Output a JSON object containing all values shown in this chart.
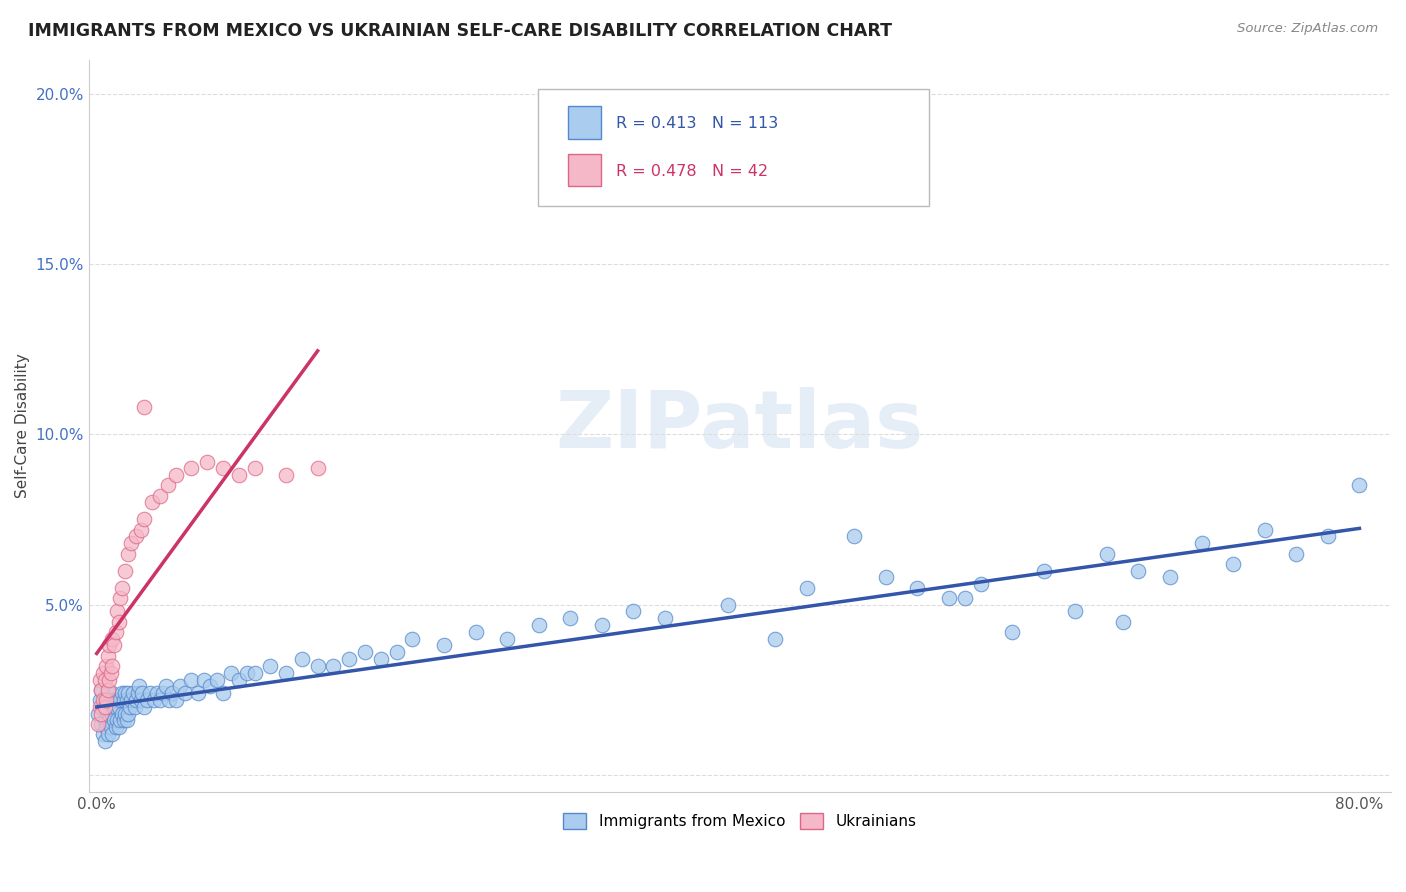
{
  "title": "IMMIGRANTS FROM MEXICO VS UKRAINIAN SELF-CARE DISABILITY CORRELATION CHART",
  "source": "Source: ZipAtlas.com",
  "ylabel": "Self-Care Disability",
  "xlim": [
    -0.005,
    0.82
  ],
  "ylim": [
    -0.005,
    0.21
  ],
  "xticks": [
    0.0,
    0.1,
    0.2,
    0.3,
    0.4,
    0.5,
    0.6,
    0.7,
    0.8
  ],
  "xticklabels": [
    "0.0%",
    "",
    "",
    "",
    "",
    "",
    "",
    "",
    "80.0%"
  ],
  "yticks": [
    0.0,
    0.05,
    0.1,
    0.15,
    0.2
  ],
  "yticklabels": [
    "",
    "5.0%",
    "10.0%",
    "15.0%",
    "20.0%"
  ],
  "legend1_label": "Immigrants from Mexico",
  "legend2_label": "Ukrainians",
  "r_mexico": 0.413,
  "n_mexico": 113,
  "r_ukraine": 0.478,
  "n_ukraine": 42,
  "color_mexico_fill": "#aaccee",
  "color_ukraine_fill": "#f5b8c8",
  "color_mexico_edge": "#5588cc",
  "color_ukraine_edge": "#dd6688",
  "color_mexico_line": "#3355aa",
  "color_ukraine_line": "#cc3366",
  "color_dash": "#ddaaaa",
  "watermark_color": "#ccddf0",
  "background_color": "#ffffff",
  "grid_color": "#dddddd",
  "mexico_x": [
    0.001,
    0.002,
    0.003,
    0.003,
    0.004,
    0.004,
    0.005,
    0.005,
    0.005,
    0.006,
    0.006,
    0.007,
    0.007,
    0.007,
    0.008,
    0.008,
    0.009,
    0.009,
    0.01,
    0.01,
    0.01,
    0.011,
    0.011,
    0.012,
    0.012,
    0.013,
    0.013,
    0.014,
    0.014,
    0.015,
    0.015,
    0.016,
    0.016,
    0.017,
    0.017,
    0.018,
    0.018,
    0.019,
    0.019,
    0.02,
    0.02,
    0.021,
    0.022,
    0.023,
    0.024,
    0.025,
    0.026,
    0.027,
    0.028,
    0.029,
    0.03,
    0.032,
    0.034,
    0.036,
    0.038,
    0.04,
    0.042,
    0.044,
    0.046,
    0.048,
    0.05,
    0.053,
    0.056,
    0.06,
    0.064,
    0.068,
    0.072,
    0.076,
    0.08,
    0.085,
    0.09,
    0.095,
    0.1,
    0.11,
    0.12,
    0.13,
    0.14,
    0.15,
    0.16,
    0.17,
    0.18,
    0.19,
    0.2,
    0.22,
    0.24,
    0.26,
    0.28,
    0.3,
    0.32,
    0.34,
    0.36,
    0.4,
    0.45,
    0.5,
    0.52,
    0.54,
    0.56,
    0.6,
    0.64,
    0.66,
    0.68,
    0.7,
    0.72,
    0.74,
    0.76,
    0.78,
    0.8,
    0.62,
    0.65,
    0.55,
    0.58,
    0.48,
    0.43
  ],
  "mexico_y": [
    0.018,
    0.022,
    0.015,
    0.025,
    0.012,
    0.02,
    0.01,
    0.016,
    0.022,
    0.014,
    0.02,
    0.012,
    0.018,
    0.024,
    0.016,
    0.022,
    0.014,
    0.02,
    0.012,
    0.018,
    0.024,
    0.016,
    0.022,
    0.014,
    0.02,
    0.016,
    0.022,
    0.014,
    0.02,
    0.016,
    0.022,
    0.018,
    0.024,
    0.016,
    0.022,
    0.018,
    0.024,
    0.016,
    0.022,
    0.018,
    0.024,
    0.02,
    0.022,
    0.024,
    0.02,
    0.022,
    0.024,
    0.026,
    0.022,
    0.024,
    0.02,
    0.022,
    0.024,
    0.022,
    0.024,
    0.022,
    0.024,
    0.026,
    0.022,
    0.024,
    0.022,
    0.026,
    0.024,
    0.028,
    0.024,
    0.028,
    0.026,
    0.028,
    0.024,
    0.03,
    0.028,
    0.03,
    0.03,
    0.032,
    0.03,
    0.034,
    0.032,
    0.032,
    0.034,
    0.036,
    0.034,
    0.036,
    0.04,
    0.038,
    0.042,
    0.04,
    0.044,
    0.046,
    0.044,
    0.048,
    0.046,
    0.05,
    0.055,
    0.058,
    0.055,
    0.052,
    0.056,
    0.06,
    0.065,
    0.06,
    0.058,
    0.068,
    0.062,
    0.072,
    0.065,
    0.07,
    0.085,
    0.048,
    0.045,
    0.052,
    0.042,
    0.07,
    0.04
  ],
  "ukraine_x": [
    0.001,
    0.002,
    0.002,
    0.003,
    0.003,
    0.004,
    0.004,
    0.005,
    0.005,
    0.006,
    0.006,
    0.007,
    0.007,
    0.008,
    0.008,
    0.009,
    0.01,
    0.01,
    0.011,
    0.012,
    0.013,
    0.014,
    0.015,
    0.016,
    0.018,
    0.02,
    0.022,
    0.025,
    0.028,
    0.03,
    0.035,
    0.04,
    0.045,
    0.05,
    0.06,
    0.07,
    0.08,
    0.09,
    0.1,
    0.12,
    0.14,
    0.03
  ],
  "ukraine_y": [
    0.015,
    0.02,
    0.028,
    0.018,
    0.025,
    0.022,
    0.03,
    0.02,
    0.028,
    0.022,
    0.032,
    0.025,
    0.035,
    0.028,
    0.038,
    0.03,
    0.032,
    0.04,
    0.038,
    0.042,
    0.048,
    0.045,
    0.052,
    0.055,
    0.06,
    0.065,
    0.068,
    0.07,
    0.072,
    0.075,
    0.08,
    0.082,
    0.085,
    0.088,
    0.09,
    0.092,
    0.09,
    0.088,
    0.09,
    0.088,
    0.09,
    0.108
  ]
}
